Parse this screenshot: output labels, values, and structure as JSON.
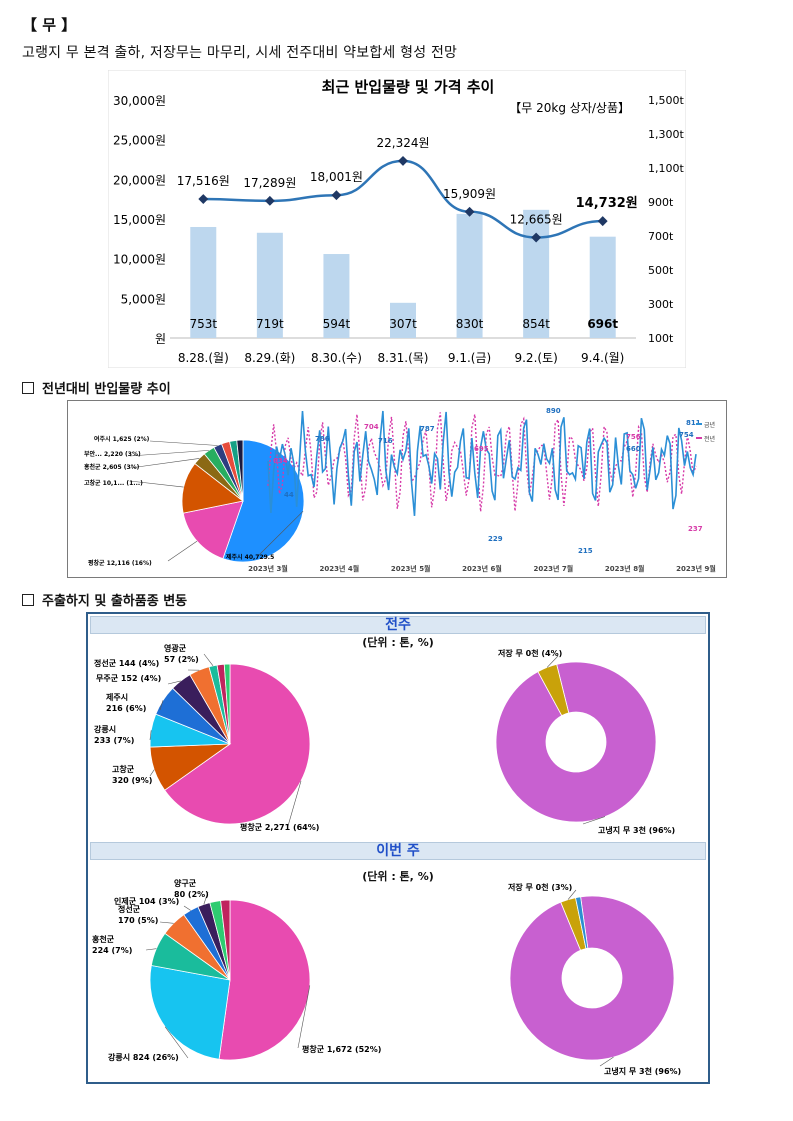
{
  "section_title": "【 무 】",
  "headline": "고랭지 무 본격 출하, 저장무는 마무리, 시세 전주대비 약보합세 형성 전망",
  "chart_data": [
    {
      "type": "bar",
      "title": "최근 반입물량 및 가격 추이",
      "note": "【무 20kg 상자/상품】",
      "categories": [
        "8.28.(월)",
        "8.29.(화)",
        "8.30.(수)",
        "8.31.(목)",
        "9.1.(금)",
        "9.2.(토)",
        "9.4.(월)"
      ],
      "series": [
        {
          "type": "bar",
          "values": [
            753,
            719,
            594,
            307,
            830,
            854,
            696
          ],
          "labels": [
            "753t",
            "719t",
            "594t",
            "307t",
            "830t",
            "854t",
            "696t"
          ]
        },
        {
          "type": "line",
          "values": [
            17516,
            17289,
            18001,
            22324,
            15909,
            12665,
            14732
          ],
          "labels": [
            "17,516원",
            "17,289원",
            "18,001원",
            "22,324원",
            "15,909원",
            "12,665원",
            "14,732원"
          ]
        }
      ],
      "y_left_ticks": [
        "30,000원",
        "25,000원",
        "20,000원",
        "15,000원",
        "10,000원",
        "5,000원",
        "원"
      ],
      "y_right_ticks": [
        "1,500t",
        "1,300t",
        "1,100t",
        "900t",
        "700t",
        "500t",
        "300t",
        "100t"
      ],
      "y_left_range": [
        0,
        30000
      ],
      "y_right_range": [
        100,
        1500
      ],
      "colors": {
        "bar": "#bdd7ee",
        "line": "#2e75b6",
        "marker": "#1f3864"
      }
    },
    {
      "type": "pie",
      "slices": [
        {
          "label": "제주시 40,729.5",
          "value": 40729.5,
          "color": "#1e90ff"
        },
        {
          "label": "평창군 12,116 (16%)",
          "value": 12116,
          "color": "#e84bb0"
        },
        {
          "label": "고창군 10,1... (1...)",
          "value": 10100,
          "color": "#d35400"
        },
        {
          "label": "홍천군 2,605 (3%)",
          "value": 2605,
          "color": "#8b6914"
        },
        {
          "label": "부안... 2,220 (3%)",
          "value": 2220,
          "color": "#27ae60"
        },
        {
          "label": "여주시 1,625 (2%)",
          "value": 1625,
          "color": "#2c3e80"
        },
        {
          "label": "",
          "value": 1600,
          "color": "#e74c3c"
        },
        {
          "label": "",
          "value": 1400,
          "color": "#16a085"
        },
        {
          "label": "",
          "value": 1200,
          "color": "#1a1a40"
        }
      ]
    },
    {
      "type": "line",
      "x_ticks": [
        "2023년 3월",
        "2023년 4월",
        "2023년 5월",
        "2023년 6월",
        "2023년 7월",
        "2023년 8월",
        "2023년 9월"
      ],
      "legend": [
        "금년",
        "전년"
      ],
      "point_labels": [
        "634",
        "44",
        "786",
        "704",
        "716",
        "787",
        "695",
        "890",
        "660",
        "756",
        "754",
        "811",
        "237",
        "215",
        "229"
      ],
      "colors": {
        "this_year": "#2b8fd6",
        "last_year": "#d63aa8"
      }
    },
    {
      "type": "pie",
      "slices": [
        {
          "label": "평창군 2,271 (64%)",
          "value": 2271,
          "color": "#e84bb0"
        },
        {
          "label": "고창군 320 (9%)",
          "value": 320,
          "color": "#d35400"
        },
        {
          "label": "강릉시 233 (7%)",
          "value": 233,
          "color": "#17c4f0"
        },
        {
          "label": "제주시 216 (6%)",
          "value": 216,
          "color": "#1e6fd6"
        },
        {
          "label": "무주군 152 (4%)",
          "value": 152,
          "color": "#3a1e5c"
        },
        {
          "label": "정선군 144 (4%)",
          "value": 144,
          "color": "#f07030"
        },
        {
          "label": "영광군 57 (2%)",
          "value": 57,
          "color": "#1abc9c"
        },
        {
          "label": "",
          "value": 50,
          "color": "#c0245e"
        },
        {
          "label": "",
          "value": 40,
          "color": "#2ecc71"
        }
      ]
    },
    {
      "type": "pie",
      "donut": true,
      "slices": [
        {
          "label": "고냉지 무 3천 (96%)",
          "value": 96,
          "color": "#c860d0"
        },
        {
          "label": "저장 무 0천 (4%)",
          "value": 4,
          "color": "#c9a20a"
        }
      ]
    },
    {
      "type": "pie",
      "slices": [
        {
          "label": "평창군 1,672 (52%)",
          "value": 1672,
          "color": "#e84bb0"
        },
        {
          "label": "강릉시 824 (26%)",
          "value": 824,
          "color": "#17c4f0"
        },
        {
          "label": "홍천군 224 (7%)",
          "value": 224,
          "color": "#1abc9c"
        },
        {
          "label": "정선군 170 (5%)",
          "value": 170,
          "color": "#f07030"
        },
        {
          "label": "인제군 104 (3%)",
          "value": 104,
          "color": "#1e6fd6"
        },
        {
          "label": "양구군 80 (2%)",
          "value": 80,
          "color": "#3a1e5c"
        },
        {
          "label": "",
          "value": 70,
          "color": "#2ecc71"
        },
        {
          "label": "",
          "value": 60,
          "color": "#c0245e"
        }
      ]
    },
    {
      "type": "pie",
      "donut": true,
      "slices": [
        {
          "label": "고냉지 무 3천 (96%)",
          "value": 96,
          "color": "#c860d0"
        },
        {
          "label": "저장 무 0천 (3%)",
          "value": 3,
          "color": "#c9a20a"
        },
        {
          "label": "",
          "value": 1,
          "color": "#2c8fd0"
        }
      ]
    }
  ],
  "sections": {
    "yoy": "전년대비 반입물량 추이",
    "origin": "주출하지 및 출하품종 변동"
  },
  "panels": {
    "prev_week": "전주",
    "this_week": "이번 주",
    "unit": "(단위 : 톤, %)"
  }
}
